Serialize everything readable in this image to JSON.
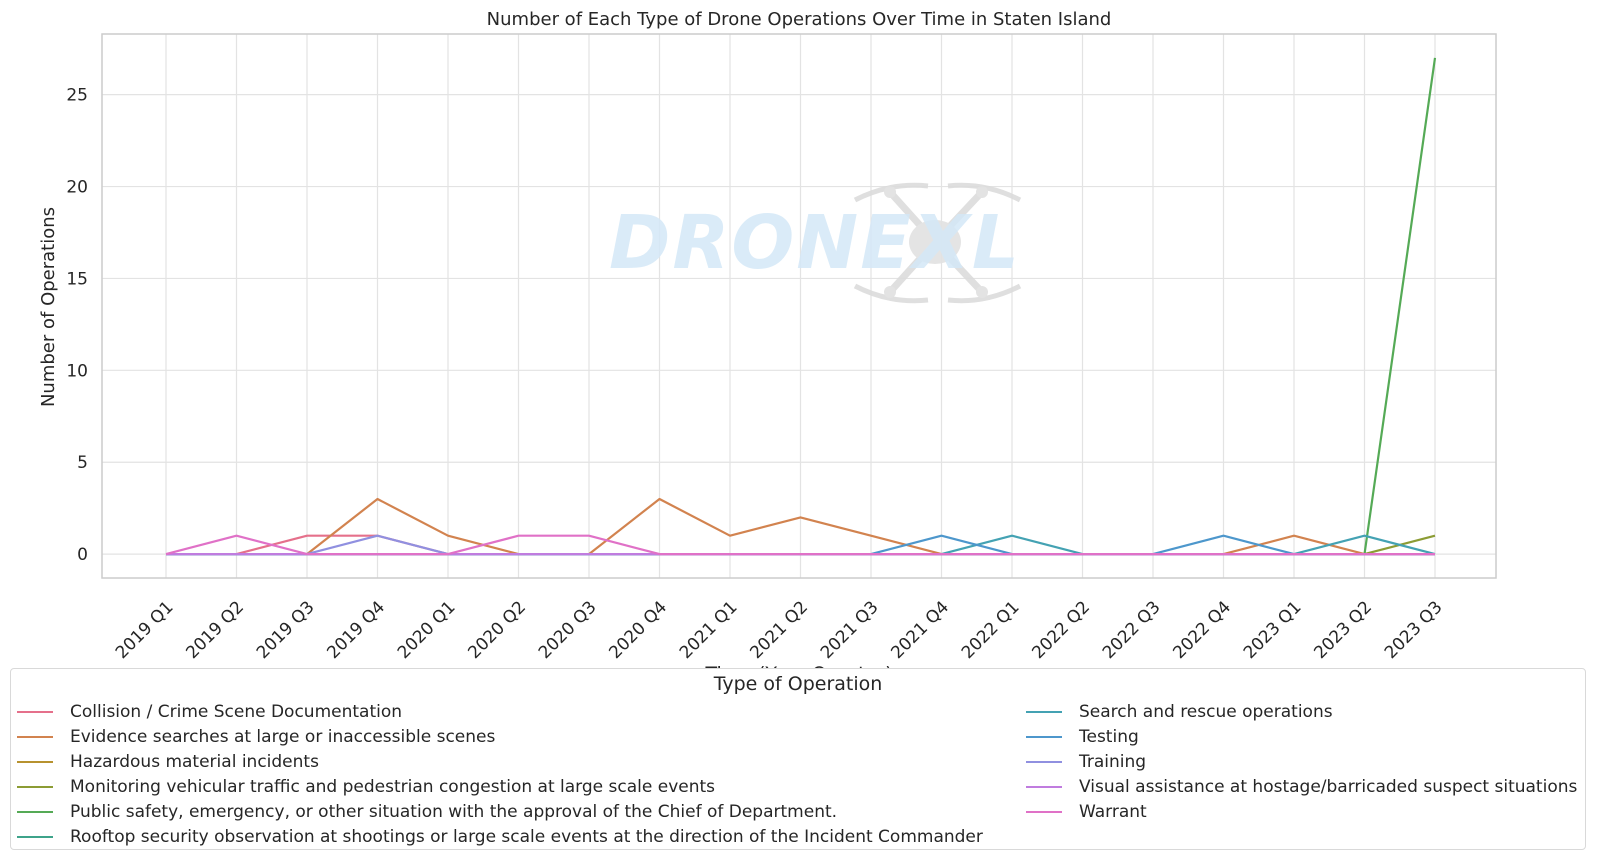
{
  "chart_data": {
    "type": "line",
    "title": "Number of Each Type of Drone Operations Over Time in Staten Island",
    "xlabel": "Time (Year Quarter)",
    "ylabel": "Number of Operations",
    "ylim": [
      -1.3,
      28.3
    ],
    "yticks": [
      0,
      5,
      10,
      15,
      20,
      25
    ],
    "grid": true,
    "legend_placement": "bottom",
    "legend_title": "Type of Operation",
    "watermark": "DRONEXL",
    "categories": [
      "2019 Q1",
      "2019 Q2",
      "2019 Q3",
      "2019 Q4",
      "2020 Q1",
      "2020 Q2",
      "2020 Q3",
      "2020 Q4",
      "2021 Q1",
      "2021 Q2",
      "2021 Q3",
      "2021 Q4",
      "2022 Q1",
      "2022 Q2",
      "2022 Q3",
      "2022 Q4",
      "2023 Q1",
      "2023 Q2",
      "2023 Q3"
    ],
    "series": [
      {
        "name": "Collision / Crime Scene Documentation",
        "color": "#e5708b",
        "values": [
          0,
          0,
          1,
          1,
          0,
          0,
          0,
          0,
          0,
          0,
          0,
          0,
          0,
          0,
          0,
          0,
          0,
          0,
          0
        ]
      },
      {
        "name": "Evidence searches at large or inaccessible scenes",
        "color": "#d2834f",
        "values": [
          0,
          0,
          0,
          3,
          1,
          0,
          0,
          3,
          1,
          2,
          1,
          0,
          0,
          0,
          0,
          0,
          1,
          0,
          0
        ]
      },
      {
        "name": "Hazardous material incidents",
        "color": "#b7922f",
        "values": [
          0,
          0,
          0,
          0,
          0,
          0,
          0,
          0,
          0,
          0,
          0,
          0,
          0,
          0,
          0,
          0,
          0,
          0,
          0
        ]
      },
      {
        "name": "Monitoring vehicular traffic and pedestrian congestion at large scale events",
        "color": "#8c9c34",
        "values": [
          0,
          0,
          0,
          0,
          0,
          0,
          0,
          0,
          0,
          0,
          0,
          0,
          0,
          0,
          0,
          0,
          0,
          0,
          1
        ]
      },
      {
        "name": "Public safety, emergency, or other situation with the approval of the Chief of Department.",
        "color": "#55aa56",
        "values": [
          0,
          0,
          0,
          0,
          0,
          0,
          0,
          0,
          0,
          0,
          0,
          0,
          0,
          0,
          0,
          0,
          0,
          0,
          27
        ]
      },
      {
        "name": "Rooftop security observation at shootings or large scale events at the direction of the Incident Commander",
        "color": "#3ea38a",
        "values": [
          0,
          0,
          0,
          0,
          0,
          0,
          0,
          0,
          0,
          0,
          0,
          0,
          0,
          0,
          0,
          0,
          0,
          0,
          0
        ]
      },
      {
        "name": "Search and rescue operations",
        "color": "#44a2b3",
        "values": [
          0,
          0,
          0,
          0,
          0,
          0,
          0,
          0,
          0,
          0,
          0,
          0,
          1,
          0,
          0,
          0,
          0,
          1,
          0
        ]
      },
      {
        "name": "Testing",
        "color": "#4d97cc",
        "values": [
          0,
          0,
          0,
          0,
          0,
          0,
          0,
          0,
          0,
          0,
          0,
          1,
          0,
          0,
          0,
          1,
          0,
          0,
          0
        ]
      },
      {
        "name": "Training",
        "color": "#9090e0",
        "values": [
          0,
          0,
          0,
          1,
          0,
          0,
          0,
          0,
          0,
          0,
          0,
          0,
          0,
          0,
          0,
          0,
          0,
          0,
          0
        ]
      },
      {
        "name": "Visual assistance at hostage/barricaded suspect situations",
        "color": "#c07cdf",
        "values": [
          0,
          0,
          0,
          0,
          0,
          0,
          0,
          0,
          0,
          0,
          0,
          0,
          0,
          0,
          0,
          0,
          0,
          0,
          0
        ]
      },
      {
        "name": "Warrant",
        "color": "#e071c7",
        "values": [
          0,
          1,
          0,
          0,
          0,
          1,
          1,
          0,
          0,
          0,
          0,
          0,
          0,
          0,
          0,
          0,
          0,
          0,
          0
        ]
      }
    ]
  }
}
